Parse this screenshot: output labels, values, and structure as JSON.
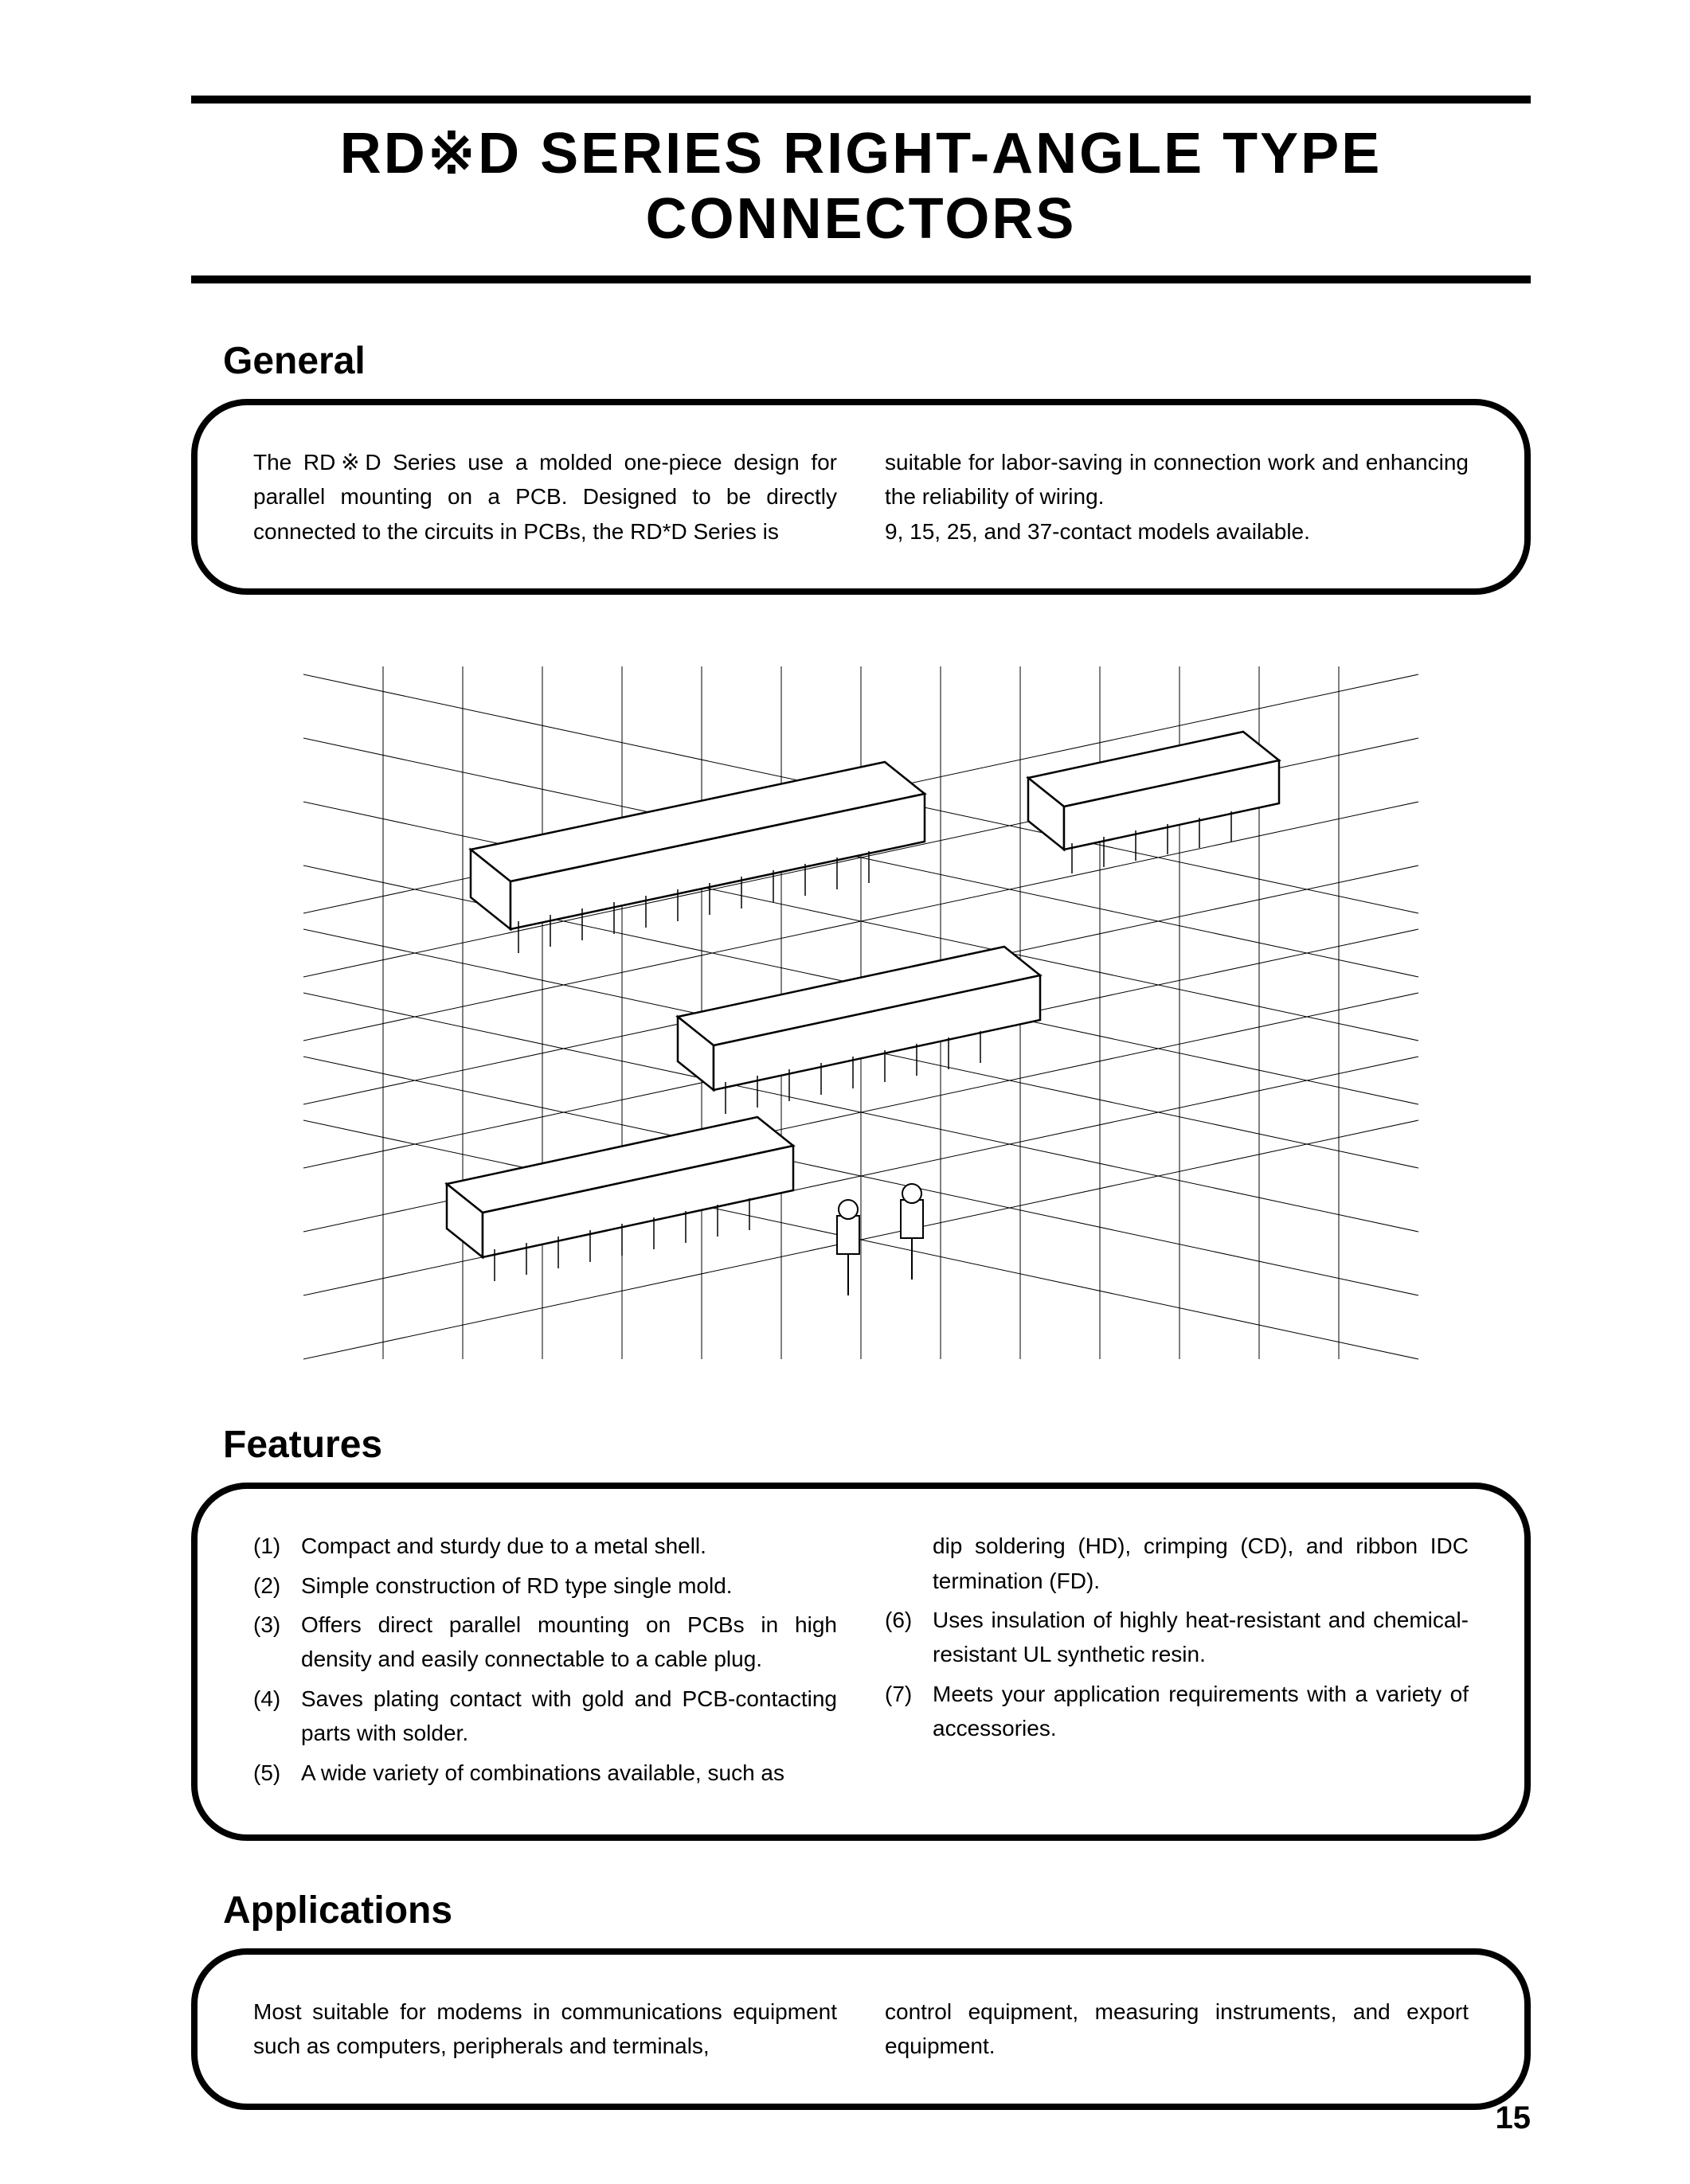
{
  "title": "RD※D  SERIES  RIGHT-ANGLE  TYPE  CONNECTORS",
  "page_number": "15",
  "sections": {
    "general": {
      "heading": "General",
      "col1": "The RD※D Series use a molded one-piece design for parallel mounting on a PCB. Designed to be directly connected to the circuits in PCBs, the RD*D Series is",
      "col2": "suitable for labor-saving in connection work and enhancing the reliability of wiring.\n9, 15, 25, and 37-contact models available."
    },
    "features": {
      "heading": "Features",
      "left": [
        {
          "n": "(1)",
          "t": "Compact and sturdy due to a metal shell."
        },
        {
          "n": "(2)",
          "t": "Simple construction of RD type single mold."
        },
        {
          "n": "(3)",
          "t": "Offers direct parallel mounting on PCBs in high density and easily connectable to a cable plug."
        },
        {
          "n": "(4)",
          "t": "Saves plating contact with gold and PCB-contacting parts with solder."
        },
        {
          "n": "(5)",
          "t": "A wide variety of combinations available, such as"
        }
      ],
      "right": [
        {
          "n": "",
          "t": "dip soldering (HD), crimping (CD), and ribbon IDC termination (FD)."
        },
        {
          "n": "(6)",
          "t": "Uses insulation of highly heat-resistant and chemical-resistant UL synthetic resin."
        },
        {
          "n": "(7)",
          "t": "Meets your application requirements with a variety of accessories."
        }
      ]
    },
    "applications": {
      "heading": "Applications",
      "col1": "Most suitable for modems in communications equipment such as computers, peripherals and terminals,",
      "col2": "control equipment, measuring instruments, and export equipment."
    }
  },
  "illustration": {
    "grid_color": "#000000",
    "background": "#ffffff",
    "stroke_width": 1.2,
    "isometric_angle": 25
  }
}
